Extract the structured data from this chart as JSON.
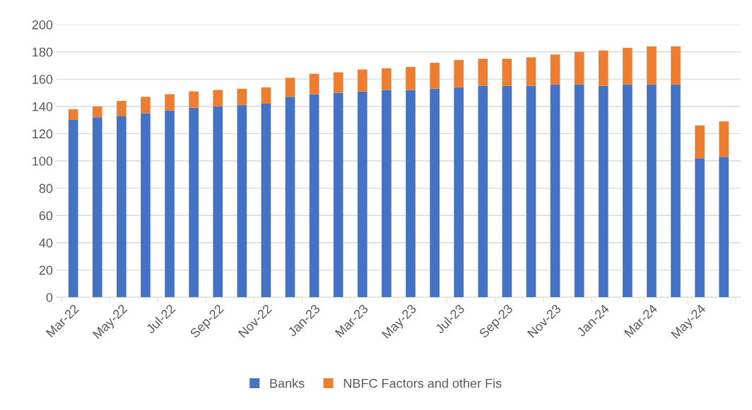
{
  "chart_data": {
    "type": "bar",
    "stacked": true,
    "categories": [
      "Mar-22",
      null,
      "May-22",
      null,
      "Jul-22",
      null,
      "Sep-22",
      null,
      "Nov-22",
      null,
      "Jan-23",
      null,
      "Mar-23",
      null,
      "May-23",
      null,
      "Jul-23",
      null,
      "Sep-23",
      null,
      "Nov-23",
      null,
      "Jan-24",
      null,
      "Mar-24",
      null,
      "May-24",
      null
    ],
    "series": [
      {
        "name": "Banks",
        "color": "#4472c4",
        "values": [
          130,
          132,
          133,
          135,
          137,
          139,
          140,
          141,
          142,
          147,
          149,
          150,
          151,
          152,
          152,
          153,
          154,
          155,
          155,
          155,
          156,
          156,
          155,
          156,
          156,
          156,
          102,
          103
        ]
      },
      {
        "name": "NBFC Factors and other Fis",
        "color": "#ed7d31",
        "values": [
          8,
          8,
          11,
          12,
          12,
          12,
          12,
          12,
          12,
          14,
          15,
          15,
          16,
          16,
          17,
          19,
          20,
          20,
          20,
          21,
          22,
          24,
          26,
          27,
          28,
          28,
          24,
          26
        ]
      }
    ],
    "ylim": [
      0,
      200
    ],
    "yticks": [
      0,
      20,
      40,
      60,
      80,
      100,
      120,
      140,
      160,
      180,
      200
    ],
    "grid": "y",
    "legend": "bottom"
  }
}
